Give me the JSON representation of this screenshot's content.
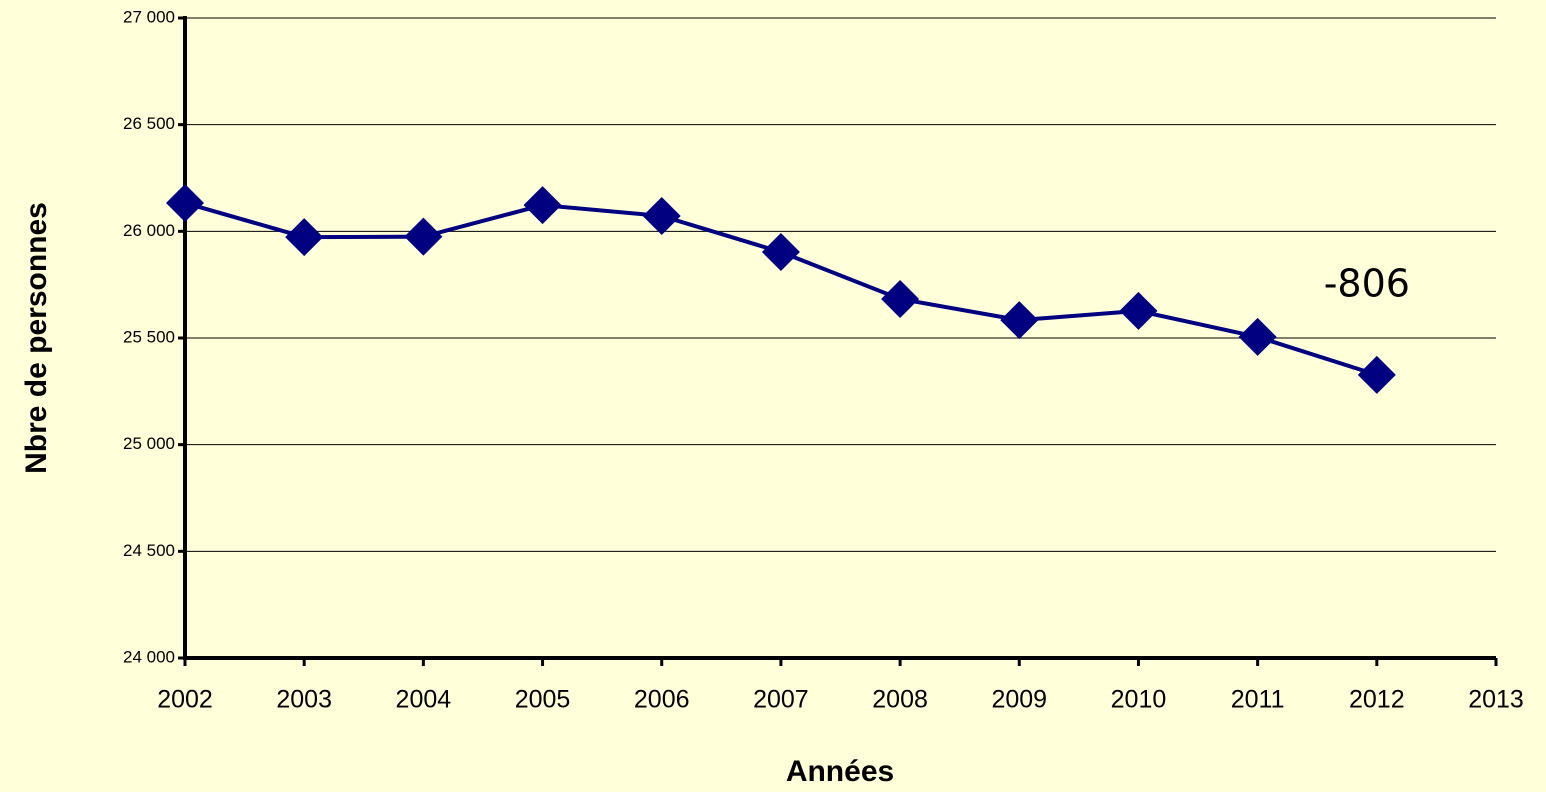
{
  "chart_data": {
    "type": "line",
    "x_label": "Années",
    "y_label": "Nbre de personnes",
    "x": [
      2002,
      2003,
      2004,
      2005,
      2006,
      2007,
      2008,
      2009,
      2010,
      2011,
      2012
    ],
    "values": [
      26133,
      25973,
      25975,
      26123,
      26072,
      25903,
      25683,
      25584,
      25627,
      25505,
      25327
    ],
    "color": "#000080",
    "xlim": [
      2002,
      2013
    ],
    "xticks": [
      2002,
      2003,
      2004,
      2005,
      2006,
      2007,
      2008,
      2009,
      2010,
      2011,
      2012,
      2013
    ],
    "ylim": [
      24000,
      27000
    ],
    "yticks": [
      {
        "value": 24000,
        "label": "24 000"
      },
      {
        "value": 24500,
        "label": "24 500"
      },
      {
        "value": 25000,
        "label": "25 000"
      },
      {
        "value": 25500,
        "label": "25 500"
      },
      {
        "value": 26000,
        "label": "26 000"
      },
      {
        "value": 26500,
        "label": "26 500"
      },
      {
        "value": 27000,
        "label": "27 000"
      }
    ],
    "grid": true,
    "annotations": [
      "-806"
    ]
  }
}
